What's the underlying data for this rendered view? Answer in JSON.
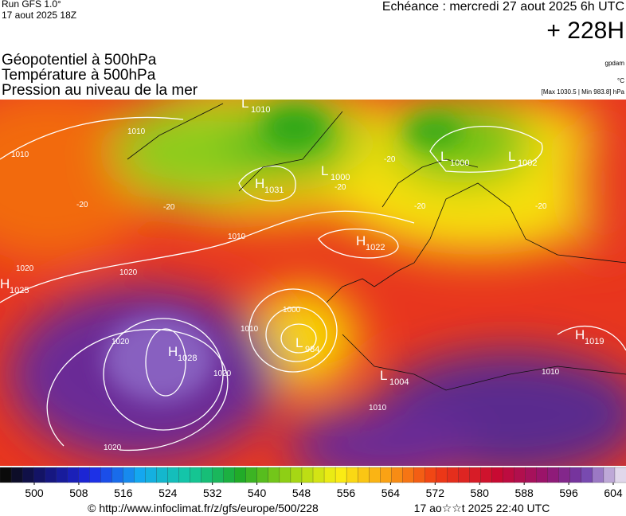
{
  "header": {
    "run": "Run GFS 1.0°",
    "run_date": "17 aout 2025 18Z",
    "valid": "Echéance : mercredi 27 aout 2025 6h UTC",
    "lead": "+ 228H",
    "fields": [
      "Géopotentiel à 500hPa",
      "Température à 500hPa",
      "Pression au niveau de la mer"
    ],
    "units": [
      "gpdam",
      "°C",
      "[Max 1030.5 | Min 983.8] hPa"
    ]
  },
  "systems": [
    {
      "type": "H",
      "value": "1025"
    },
    {
      "type": "L",
      "value": "1010"
    },
    {
      "type": "H",
      "value": "1031"
    },
    {
      "type": "L",
      "value": "1000"
    },
    {
      "type": "L",
      "value": "1000"
    },
    {
      "type": "L",
      "value": "1002"
    },
    {
      "type": "H",
      "value": "1022"
    },
    {
      "type": "H",
      "value": "1028"
    },
    {
      "type": "L",
      "value": "984"
    },
    {
      "type": "L",
      "value": "1004"
    },
    {
      "type": "H",
      "value": "1019"
    }
  ],
  "isobar_labels": [
    "1010",
    "1010",
    "1010",
    "1020",
    "1020",
    "1020",
    "1020",
    "1020",
    "1000",
    "1010",
    "1010",
    "1010",
    "-20",
    "-20",
    "-20",
    "-20",
    "-20",
    "-20"
  ],
  "colorbar": {
    "ticks": [
      500,
      508,
      516,
      524,
      532,
      540,
      548,
      556,
      564,
      572,
      580,
      588,
      596,
      604
    ]
  },
  "footer": {
    "source": "© http://www.infoclimat.fr/z/gfs/europe/500/228",
    "generated": "17 ao☆☆t 2025 22:40 UTC"
  }
}
